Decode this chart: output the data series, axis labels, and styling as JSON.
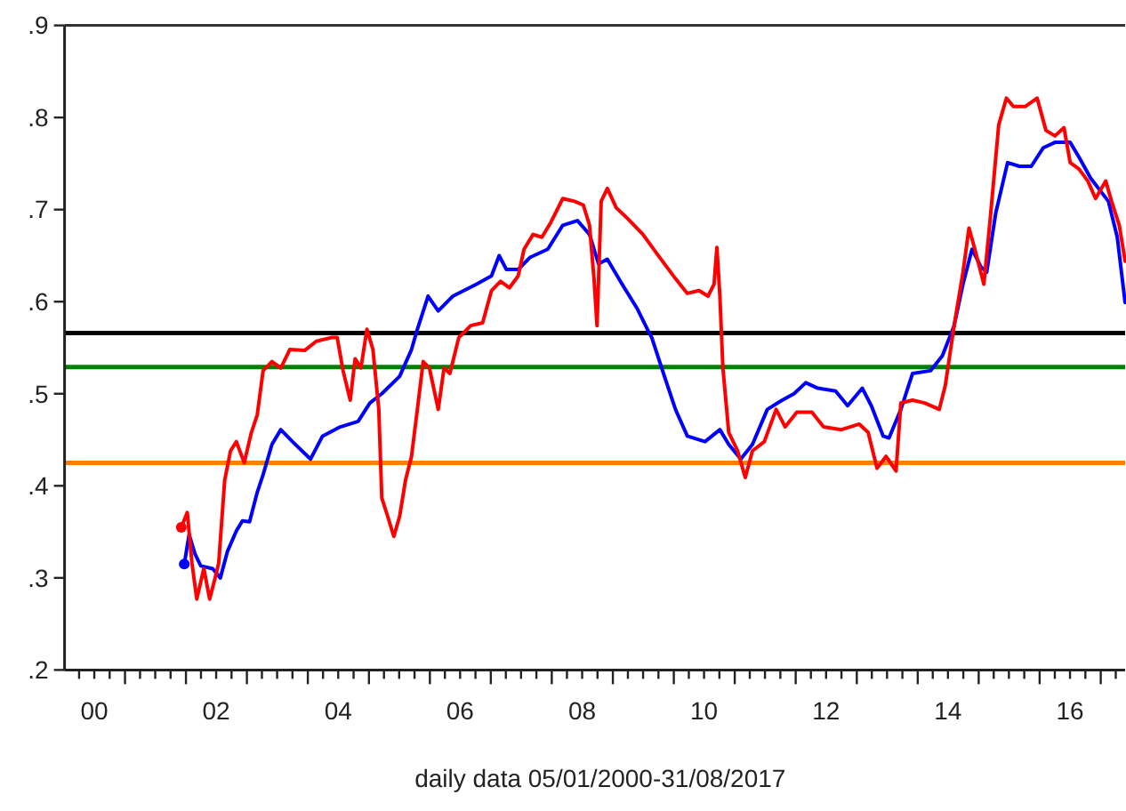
{
  "chart_data": {
    "type": "line",
    "xlabel": "daily data 05/01/2000-31/08/2017",
    "xlim": [
      "2000-01-05",
      "2017-05-27"
    ],
    "ylim": [
      0.2,
      0.9
    ],
    "yticks": [
      {
        "value": 0.2,
        "label": ".2"
      },
      {
        "value": 0.3,
        "label": ".3"
      },
      {
        "value": 0.4,
        "label": ".4"
      },
      {
        "value": 0.5,
        "label": ".5"
      },
      {
        "value": 0.6,
        "label": ".6"
      },
      {
        "value": 0.7,
        "label": ".7"
      },
      {
        "value": 0.8,
        "label": ".8"
      },
      {
        "value": 0.9,
        "label": ".9"
      }
    ],
    "xticks": [
      {
        "value": "2000-04-01",
        "label": null
      },
      {
        "value": "2000-07-01",
        "label": "00"
      },
      {
        "value": "2000-10-01",
        "label": null
      },
      {
        "value": "2001-01-01",
        "label": null
      },
      {
        "value": "2001-04-01",
        "label": null
      },
      {
        "value": "2001-07-01",
        "label": null
      },
      {
        "value": "2001-10-01",
        "label": null
      },
      {
        "value": "2002-01-01",
        "label": null
      },
      {
        "value": "2002-04-01",
        "label": null
      },
      {
        "value": "2002-07-01",
        "label": "02"
      },
      {
        "value": "2002-10-01",
        "label": null
      },
      {
        "value": "2003-01-01",
        "label": null
      },
      {
        "value": "2003-04-01",
        "label": null
      },
      {
        "value": "2003-07-01",
        "label": null
      },
      {
        "value": "2003-10-01",
        "label": null
      },
      {
        "value": "2004-01-01",
        "label": null
      },
      {
        "value": "2004-04-01",
        "label": null
      },
      {
        "value": "2004-07-01",
        "label": "04"
      },
      {
        "value": "2004-10-01",
        "label": null
      },
      {
        "value": "2005-01-01",
        "label": null
      },
      {
        "value": "2005-04-01",
        "label": null
      },
      {
        "value": "2005-07-01",
        "label": null
      },
      {
        "value": "2005-10-01",
        "label": null
      },
      {
        "value": "2006-01-01",
        "label": null
      },
      {
        "value": "2006-04-01",
        "label": null
      },
      {
        "value": "2006-07-01",
        "label": "06"
      },
      {
        "value": "2006-10-01",
        "label": null
      },
      {
        "value": "2007-01-01",
        "label": null
      },
      {
        "value": "2007-04-01",
        "label": null
      },
      {
        "value": "2007-07-01",
        "label": null
      },
      {
        "value": "2007-10-01",
        "label": null
      },
      {
        "value": "2008-01-01",
        "label": null
      },
      {
        "value": "2008-04-01",
        "label": null
      },
      {
        "value": "2008-07-01",
        "label": "08"
      },
      {
        "value": "2008-10-01",
        "label": null
      },
      {
        "value": "2009-01-01",
        "label": null
      },
      {
        "value": "2009-04-01",
        "label": null
      },
      {
        "value": "2009-07-01",
        "label": null
      },
      {
        "value": "2009-10-01",
        "label": null
      },
      {
        "value": "2010-01-01",
        "label": null
      },
      {
        "value": "2010-04-01",
        "label": null
      },
      {
        "value": "2010-07-01",
        "label": "10"
      },
      {
        "value": "2010-10-01",
        "label": null
      },
      {
        "value": "2011-01-01",
        "label": null
      },
      {
        "value": "2011-04-01",
        "label": null
      },
      {
        "value": "2011-07-01",
        "label": null
      },
      {
        "value": "2011-10-01",
        "label": null
      },
      {
        "value": "2012-01-01",
        "label": null
      },
      {
        "value": "2012-04-01",
        "label": null
      },
      {
        "value": "2012-07-01",
        "label": "12"
      },
      {
        "value": "2012-10-01",
        "label": null
      },
      {
        "value": "2013-01-01",
        "label": null
      },
      {
        "value": "2013-04-01",
        "label": null
      },
      {
        "value": "2013-07-01",
        "label": null
      },
      {
        "value": "2013-10-01",
        "label": null
      },
      {
        "value": "2014-01-01",
        "label": null
      },
      {
        "value": "2014-04-01",
        "label": null
      },
      {
        "value": "2014-07-01",
        "label": "14"
      },
      {
        "value": "2014-10-01",
        "label": null
      },
      {
        "value": "2015-01-01",
        "label": null
      },
      {
        "value": "2015-04-01",
        "label": null
      },
      {
        "value": "2015-07-01",
        "label": null
      },
      {
        "value": "2015-10-01",
        "label": null
      },
      {
        "value": "2016-01-01",
        "label": null
      },
      {
        "value": "2016-04-01",
        "label": null
      },
      {
        "value": "2016-07-01",
        "label": "16"
      },
      {
        "value": "2016-10-01",
        "label": null
      },
      {
        "value": "2017-01-01",
        "label": null
      },
      {
        "value": "2017-04-01",
        "label": null
      }
    ],
    "ref_lines": [
      {
        "axis": "y",
        "value": 0.566,
        "color": "#000000"
      },
      {
        "axis": "y",
        "value": 0.529,
        "color": "#008000"
      },
      {
        "axis": "y",
        "value": 0.425,
        "color": "#ff8000"
      }
    ],
    "series": [
      {
        "color": "#0000ff",
        "x": [
          "2001-12-22",
          "2002-01-20",
          "2002-02-24",
          "2002-03-31",
          "2002-06-10",
          "2002-07-26",
          "2002-09-07",
          "2002-10-30",
          "2002-12-05",
          "2003-01-17",
          "2003-03-04",
          "2003-04-08",
          "2003-05-31",
          "2003-07-23",
          "2003-10-01",
          "2004-01-17",
          "2004-03-29",
          "2004-07-13",
          "2004-10-28",
          "2005-01-07",
          "2005-03-19",
          "2005-07-04",
          "2005-09-13",
          "2005-10-18",
          "2005-12-21",
          "2006-02-20",
          "2006-05-19",
          "2006-10-08",
          "2007-01-05",
          "2007-02-20",
          "2007-04-04",
          "2007-06-14",
          "2007-08-23",
          "2007-12-08",
          "2008-03-07",
          "2008-06-03",
          "2008-08-14",
          "2008-10-07",
          "2008-11-29",
          "2009-02-25",
          "2009-05-25",
          "2009-07-27",
          "2009-08-22",
          "2009-10-31",
          "2010-01-11",
          "2010-03-23",
          "2010-07-07",
          "2010-10-04",
          "2010-11-26",
          "2011-02-06",
          "2011-04-17",
          "2011-07-15",
          "2011-10-12",
          "2011-12-22",
          "2012-03-01",
          "2012-05-13",
          "2012-08-27",
          "2012-11-07",
          "2013-02-03",
          "2013-03-29",
          "2013-06-08",
          "2013-07-13",
          "2013-09-22",
          "2013-12-01",
          "2014-03-18",
          "2014-05-28",
          "2014-08-07",
          "2014-09-29",
          "2014-11-22",
          "2015-01-14",
          "2015-02-18",
          "2015-04-13",
          "2015-06-23",
          "2015-09-02",
          "2015-11-12",
          "2016-01-22",
          "2016-04-02",
          "2016-07-02",
          "2016-08-24",
          "2016-11-02",
          "2017-02-16",
          "2017-04-10",
          "2017-05-27"
        ],
        "values": [
          0.315,
          0.347,
          0.326,
          0.313,
          0.31,
          0.3,
          0.329,
          0.351,
          0.362,
          0.361,
          0.393,
          0.412,
          0.445,
          0.461,
          0.448,
          0.429,
          0.454,
          0.464,
          0.47,
          0.49,
          0.5,
          0.519,
          0.548,
          0.57,
          0.606,
          0.59,
          0.606,
          0.619,
          0.628,
          0.65,
          0.635,
          0.635,
          0.648,
          0.657,
          0.683,
          0.688,
          0.673,
          0.641,
          0.646,
          0.619,
          0.593,
          0.57,
          0.561,
          0.522,
          0.483,
          0.454,
          0.448,
          0.461,
          0.445,
          0.429,
          0.445,
          0.483,
          0.493,
          0.5,
          0.512,
          0.506,
          0.503,
          0.487,
          0.506,
          0.487,
          0.454,
          0.452,
          0.483,
          0.522,
          0.525,
          0.541,
          0.574,
          0.619,
          0.657,
          0.638,
          0.632,
          0.696,
          0.751,
          0.747,
          0.747,
          0.767,
          0.773,
          0.773,
          0.757,
          0.734,
          0.709,
          0.67,
          0.599
        ]
      },
      {
        "color": "#ff0000",
        "x": [
          "2001-12-04",
          "2002-01-09",
          "2002-02-06",
          "2002-03-07",
          "2002-04-18",
          "2002-05-23",
          "2002-06-29",
          "2002-07-16",
          "2002-08-21",
          "2002-09-25",
          "2002-10-30",
          "2002-12-16",
          "2003-01-28",
          "2003-03-04",
          "2003-04-08",
          "2003-05-31",
          "2003-07-23",
          "2003-09-15",
          "2003-12-13",
          "2004-02-21",
          "2004-05-21",
          "2004-06-25",
          "2004-07-30",
          "2004-09-11",
          "2004-10-10",
          "2004-11-14",
          "2004-12-20",
          "2005-01-25",
          "2005-03-01",
          "2005-03-19",
          "2005-04-23",
          "2005-05-30",
          "2005-07-04",
          "2005-08-08",
          "2005-09-13",
          "2005-10-18",
          "2005-11-22",
          "2005-12-29",
          "2006-02-20",
          "2006-03-27",
          "2006-05-01",
          "2006-06-23",
          "2006-09-03",
          "2006-11-13",
          "2007-01-05",
          "2007-02-28",
          "2007-04-22",
          "2007-06-14",
          "2007-07-19",
          "2007-09-11",
          "2007-11-03",
          "2007-12-26",
          "2008-03-07",
          "2008-05-16",
          "2008-07-08",
          "2008-08-14",
          "2008-09-10",
          "2008-09-28",
          "2008-10-23",
          "2008-11-29",
          "2009-01-21",
          "2009-04-01",
          "2009-06-30",
          "2009-09-26",
          "2010-01-11",
          "2010-03-23",
          "2010-06-01",
          "2010-07-25",
          "2010-08-30",
          "2010-09-16",
          "2010-10-04",
          "2010-10-22",
          "2010-11-26",
          "2011-01-18",
          "2011-03-05",
          "2011-04-17",
          "2011-06-27",
          "2011-09-06",
          "2011-10-30",
          "2012-01-08",
          "2012-04-07",
          "2012-06-16",
          "2012-10-01",
          "2013-01-16",
          "2013-03-10",
          "2013-05-02",
          "2013-06-25",
          "2013-08-24",
          "2013-09-22",
          "2013-12-01",
          "2014-02-11",
          "2014-05-10",
          "2014-06-15",
          "2014-08-07",
          "2014-09-29",
          "2014-11-04",
          "2014-12-09",
          "2015-02-01",
          "2015-03-09",
          "2015-05-01",
          "2015-06-16",
          "2015-07-28",
          "2015-10-08",
          "2015-12-17",
          "2016-02-08",
          "2016-04-02",
          "2016-05-26",
          "2016-07-02",
          "2016-08-24",
          "2016-10-16",
          "2016-12-01",
          "2017-01-31",
          "2017-03-07",
          "2017-04-22",
          "2017-05-27"
        ],
        "values": [
          0.355,
          0.371,
          0.316,
          0.277,
          0.31,
          0.277,
          0.303,
          0.316,
          0.406,
          0.438,
          0.448,
          0.425,
          0.458,
          0.477,
          0.525,
          0.535,
          0.528,
          0.548,
          0.547,
          0.557,
          0.561,
          0.561,
          0.525,
          0.493,
          0.538,
          0.528,
          0.57,
          0.548,
          0.483,
          0.387,
          0.367,
          0.345,
          0.367,
          0.406,
          0.432,
          0.483,
          0.535,
          0.528,
          0.483,
          0.528,
          0.522,
          0.561,
          0.574,
          0.577,
          0.612,
          0.622,
          0.615,
          0.628,
          0.657,
          0.673,
          0.67,
          0.686,
          0.712,
          0.709,
          0.705,
          0.683,
          0.625,
          0.574,
          0.709,
          0.723,
          0.702,
          0.69,
          0.673,
          0.651,
          0.625,
          0.609,
          0.612,
          0.606,
          0.619,
          0.659,
          0.606,
          0.528,
          0.458,
          0.438,
          0.409,
          0.438,
          0.448,
          0.483,
          0.464,
          0.48,
          0.48,
          0.464,
          0.461,
          0.467,
          0.458,
          0.419,
          0.432,
          0.416,
          0.49,
          0.493,
          0.49,
          0.483,
          0.509,
          0.574,
          0.632,
          0.68,
          0.657,
          0.619,
          0.686,
          0.792,
          0.821,
          0.812,
          0.812,
          0.821,
          0.786,
          0.78,
          0.789,
          0.751,
          0.744,
          0.731,
          0.712,
          0.731,
          0.709,
          0.683,
          0.644
        ]
      },
      {
        "type": "scatter",
        "color": "#0000ff",
        "x": [
          "2001-12-22"
        ],
        "values": [
          0.315
        ]
      },
      {
        "type": "scatter",
        "color": "#ff0000",
        "x": [
          "2001-12-04"
        ],
        "values": [
          0.355
        ]
      }
    ]
  }
}
